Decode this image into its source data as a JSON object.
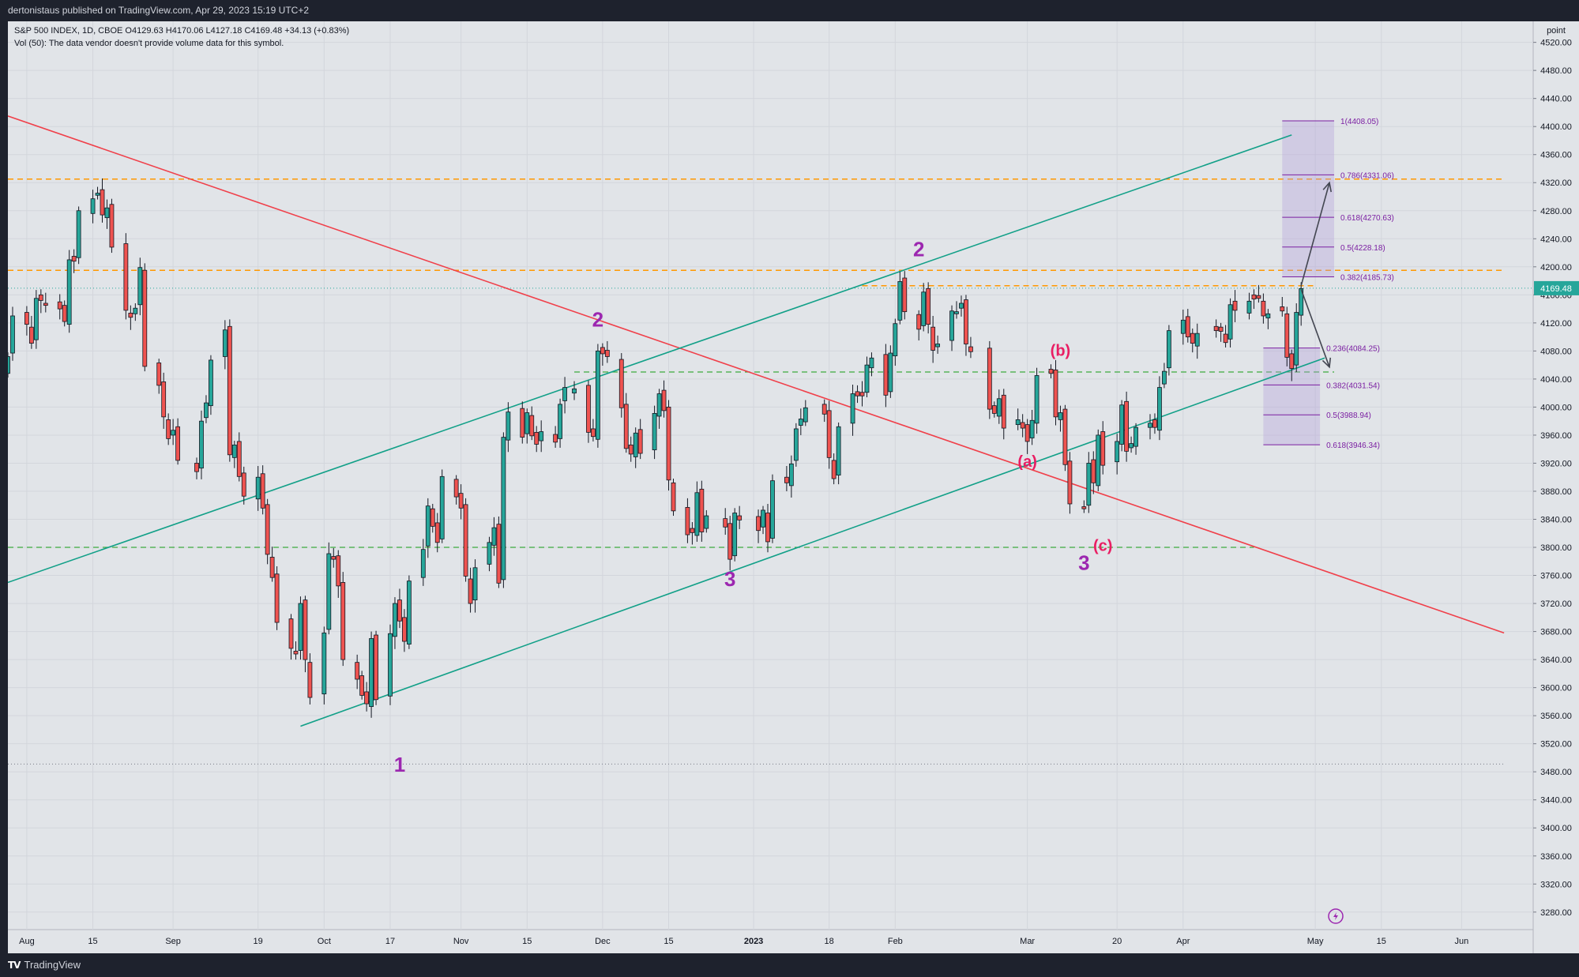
{
  "header": {
    "publisher": "dertonistaus published on TradingView.com, Apr 29, 2023 15:19 UTC+2"
  },
  "footer": {
    "brand": "TradingView",
    "logo_icon": "tradingview-logo-icon"
  },
  "colors": {
    "background": "#e1e4e8",
    "up_candle": "#26a69a",
    "down_candle": "#ef5350",
    "channel": "#12a088",
    "downtrend": "#f0404a",
    "orange_level": "#ff9800",
    "green_level": "#3daa3d",
    "wave_purple": "#9c27b0",
    "wave_pink": "#e91e63",
    "fib_zone": "#b39ddb"
  },
  "chart_data": {
    "type": "candlestick",
    "symbol_line": "S&P 500 INDEX, 1D, CBOE  O4129.63  H4170.06  L4127.18  C4169.48  +34.13 (+0.83%)",
    "volume_note": "Vol (50): The data vendor doesn't provide volume data for this symbol.",
    "axis_unit": "point",
    "last_price_label": "4169.48",
    "ylim": [
      3255,
      4550
    ],
    "y_ticks": [
      3280,
      3320,
      3360,
      3400,
      3440,
      3480,
      3520,
      3560,
      3600,
      3640,
      3680,
      3720,
      3760,
      3800,
      3840,
      3880,
      3920,
      3960,
      4000,
      4040,
      4080,
      4120,
      4160,
      4200,
      4240,
      4280,
      4320,
      4360,
      4400,
      4440,
      4480,
      4520
    ],
    "x_ticks": [
      {
        "label": "Aug",
        "date": "2022-08-01"
      },
      {
        "label": "15",
        "date": "2022-08-15"
      },
      {
        "label": "Sep",
        "date": "2022-09-01"
      },
      {
        "label": "19",
        "date": "2022-09-19"
      },
      {
        "label": "Oct",
        "date": "2022-10-03"
      },
      {
        "label": "17",
        "date": "2022-10-17"
      },
      {
        "label": "Nov",
        "date": "2022-11-01"
      },
      {
        "label": "15",
        "date": "2022-11-15"
      },
      {
        "label": "Dec",
        "date": "2022-12-01"
      },
      {
        "label": "15",
        "date": "2022-12-15"
      },
      {
        "label": "2023",
        "date": "2023-01-02"
      },
      {
        "label": "18",
        "date": "2023-01-18"
      },
      {
        "label": "Feb",
        "date": "2023-02-01"
      },
      {
        "label": "Mar",
        "date": "2023-03-01"
      },
      {
        "label": "20",
        "date": "2023-03-20"
      },
      {
        "label": "Apr",
        "date": "2023-04-03"
      },
      {
        "label": "May",
        "date": "2023-05-01"
      },
      {
        "label": "15",
        "date": "2023-05-15"
      },
      {
        "label": "Jun",
        "date": "2023-06-01"
      }
    ],
    "closes": [
      [
        "2022-07-28",
        4072
      ],
      [
        "2022-07-29",
        4130
      ],
      [
        "2022-08-01",
        4118
      ],
      [
        "2022-08-02",
        4091
      ],
      [
        "2022-08-03",
        4155
      ],
      [
        "2022-08-04",
        4152
      ],
      [
        "2022-08-05",
        4145
      ],
      [
        "2022-08-08",
        4140
      ],
      [
        "2022-08-09",
        4122
      ],
      [
        "2022-08-10",
        4210
      ],
      [
        "2022-08-11",
        4208
      ],
      [
        "2022-08-12",
        4280
      ],
      [
        "2022-08-15",
        4297
      ],
      [
        "2022-08-16",
        4305
      ],
      [
        "2022-08-17",
        4274
      ],
      [
        "2022-08-18",
        4284
      ],
      [
        "2022-08-19",
        4228
      ],
      [
        "2022-08-22",
        4138
      ],
      [
        "2022-08-23",
        4128
      ],
      [
        "2022-08-24",
        4141
      ],
      [
        "2022-08-25",
        4199
      ],
      [
        "2022-08-26",
        4058
      ],
      [
        "2022-08-29",
        4031
      ],
      [
        "2022-08-30",
        3986
      ],
      [
        "2022-08-31",
        3955
      ],
      [
        "2022-09-01",
        3967
      ],
      [
        "2022-09-02",
        3924
      ],
      [
        "2022-09-06",
        3908
      ],
      [
        "2022-09-07",
        3980
      ],
      [
        "2022-09-08",
        4006
      ],
      [
        "2022-09-09",
        4067
      ],
      [
        "2022-09-12",
        4110
      ],
      [
        "2022-09-13",
        3932
      ],
      [
        "2022-09-14",
        3946
      ],
      [
        "2022-09-15",
        3901
      ],
      [
        "2022-09-16",
        3873
      ],
      [
        "2022-09-19",
        3900
      ],
      [
        "2022-09-20",
        3856
      ],
      [
        "2022-09-21",
        3790
      ],
      [
        "2022-09-22",
        3757
      ],
      [
        "2022-09-23",
        3693
      ],
      [
        "2022-09-26",
        3656
      ],
      [
        "2022-09-27",
        3648
      ],
      [
        "2022-09-28",
        3720
      ],
      [
        "2022-09-29",
        3640
      ],
      [
        "2022-09-30",
        3586
      ],
      [
        "2022-10-03",
        3678
      ],
      [
        "2022-10-04",
        3791
      ],
      [
        "2022-10-05",
        3783
      ],
      [
        "2022-10-06",
        3745
      ],
      [
        "2022-10-07",
        3640
      ],
      [
        "2022-10-10",
        3612
      ],
      [
        "2022-10-11",
        3589
      ],
      [
        "2022-10-12",
        3577
      ],
      [
        "2022-10-13",
        3670
      ],
      [
        "2022-10-14",
        3583
      ],
      [
        "2022-10-17",
        3677
      ],
      [
        "2022-10-18",
        3720
      ],
      [
        "2022-10-19",
        3695
      ],
      [
        "2022-10-20",
        3666
      ],
      [
        "2022-10-21",
        3752
      ],
      [
        "2022-10-24",
        3797
      ],
      [
        "2022-10-25",
        3859
      ],
      [
        "2022-10-26",
        3830
      ],
      [
        "2022-10-27",
        3807
      ],
      [
        "2022-10-28",
        3901
      ],
      [
        "2022-10-31",
        3872
      ],
      [
        "2022-11-01",
        3856
      ],
      [
        "2022-11-02",
        3759
      ],
      [
        "2022-11-03",
        3720
      ],
      [
        "2022-11-04",
        3771
      ],
      [
        "2022-11-07",
        3807
      ],
      [
        "2022-11-08",
        3828
      ],
      [
        "2022-11-09",
        3749
      ],
      [
        "2022-11-10",
        3957
      ],
      [
        "2022-11-11",
        3993
      ],
      [
        "2022-11-14",
        3957
      ],
      [
        "2022-11-15",
        3992
      ],
      [
        "2022-11-16",
        3959
      ],
      [
        "2022-11-17",
        3947
      ],
      [
        "2022-11-18",
        3965
      ],
      [
        "2022-11-21",
        3950
      ],
      [
        "2022-11-22",
        4004
      ],
      [
        "2022-11-23",
        4028
      ],
      [
        "2022-11-25",
        4026
      ],
      [
        "2022-11-28",
        3964
      ],
      [
        "2022-11-29",
        3958
      ],
      [
        "2022-11-30",
        4080
      ],
      [
        "2022-12-01",
        4076
      ],
      [
        "2022-12-02",
        4072
      ],
      [
        "2022-12-05",
        3999
      ],
      [
        "2022-12-06",
        3941
      ],
      [
        "2022-12-07",
        3933
      ],
      [
        "2022-12-08",
        3963
      ],
      [
        "2022-12-09",
        3934
      ],
      [
        "2022-12-12",
        3991
      ],
      [
        "2022-12-13",
        4019
      ],
      [
        "2022-12-14",
        3995
      ],
      [
        "2022-12-15",
        3896
      ],
      [
        "2022-12-16",
        3852
      ],
      [
        "2022-12-19",
        3818
      ],
      [
        "2022-12-20",
        3821
      ],
      [
        "2022-12-21",
        3878
      ],
      [
        "2022-12-22",
        3822
      ],
      [
        "2022-12-23",
        3845
      ],
      [
        "2022-12-27",
        3829
      ],
      [
        "2022-12-28",
        3783
      ],
      [
        "2022-12-29",
        3849
      ],
      [
        "2022-12-30",
        3839
      ],
      [
        "2023-01-03",
        3824
      ],
      [
        "2023-01-04",
        3853
      ],
      [
        "2023-01-05",
        3808
      ],
      [
        "2023-01-06",
        3895
      ],
      [
        "2023-01-09",
        3892
      ],
      [
        "2023-01-10",
        3919
      ],
      [
        "2023-01-11",
        3969
      ],
      [
        "2023-01-12",
        3983
      ],
      [
        "2023-01-13",
        3999
      ],
      [
        "2023-01-17",
        3990
      ],
      [
        "2023-01-18",
        3928
      ],
      [
        "2023-01-19",
        3898
      ],
      [
        "2023-01-20",
        3972
      ],
      [
        "2023-01-23",
        4019
      ],
      [
        "2023-01-24",
        4016
      ],
      [
        "2023-01-25",
        4016
      ],
      [
        "2023-01-26",
        4060
      ],
      [
        "2023-01-27",
        4070
      ],
      [
        "2023-01-30",
        4017
      ],
      [
        "2023-01-31",
        4077
      ],
      [
        "2023-02-01",
        4119
      ],
      [
        "2023-02-02",
        4179
      ],
      [
        "2023-02-03",
        4136
      ],
      [
        "2023-02-06",
        4111
      ],
      [
        "2023-02-07",
        4164
      ],
      [
        "2023-02-08",
        4118
      ],
      [
        "2023-02-09",
        4081
      ],
      [
        "2023-02-10",
        4090
      ],
      [
        "2023-02-13",
        4137
      ],
      [
        "2023-02-14",
        4136
      ],
      [
        "2023-02-15",
        4148
      ],
      [
        "2023-02-16",
        4090
      ],
      [
        "2023-02-17",
        4079
      ],
      [
        "2023-02-21",
        3997
      ],
      [
        "2023-02-22",
        3991
      ],
      [
        "2023-02-23",
        4012
      ],
      [
        "2023-02-24",
        3970
      ],
      [
        "2023-02-27",
        3982
      ],
      [
        "2023-02-28",
        3970
      ],
      [
        "2023-03-01",
        3951
      ],
      [
        "2023-03-02",
        3981
      ],
      [
        "2023-03-03",
        4045
      ],
      [
        "2023-03-06",
        4048
      ],
      [
        "2023-03-07",
        3986
      ],
      [
        "2023-03-08",
        3992
      ],
      [
        "2023-03-09",
        3918
      ],
      [
        "2023-03-10",
        3862
      ],
      [
        "2023-03-13",
        3855
      ],
      [
        "2023-03-14",
        3920
      ],
      [
        "2023-03-15",
        3892
      ],
      [
        "2023-03-16",
        3960
      ],
      [
        "2023-03-17",
        3917
      ],
      [
        "2023-03-20",
        3951
      ],
      [
        "2023-03-21",
        4003
      ],
      [
        "2023-03-22",
        3937
      ],
      [
        "2023-03-23",
        3948
      ],
      [
        "2023-03-24",
        3971
      ],
      [
        "2023-03-27",
        3977
      ],
      [
        "2023-03-28",
        3971
      ],
      [
        "2023-03-29",
        4028
      ],
      [
        "2023-03-30",
        4051
      ],
      [
        "2023-03-31",
        4109
      ],
      [
        "2023-04-03",
        4124
      ],
      [
        "2023-04-04",
        4100
      ],
      [
        "2023-04-05",
        4091
      ],
      [
        "2023-04-06",
        4105
      ],
      [
        "2023-04-10",
        4109
      ],
      [
        "2023-04-11",
        4108
      ],
      [
        "2023-04-12",
        4092
      ],
      [
        "2023-04-13",
        4146
      ],
      [
        "2023-04-14",
        4138
      ],
      [
        "2023-04-17",
        4151
      ],
      [
        "2023-04-18",
        4154
      ],
      [
        "2023-04-19",
        4155
      ],
      [
        "2023-04-20",
        4130
      ],
      [
        "2023-04-21",
        4133
      ],
      [
        "2023-04-24",
        4137
      ],
      [
        "2023-04-25",
        4071
      ],
      [
        "2023-04-26",
        4055
      ],
      [
        "2023-04-27",
        4135
      ],
      [
        "2023-04-28",
        4169
      ]
    ],
    "horizontal_levels": [
      {
        "price": 4325,
        "style": "orange-dashed",
        "start": "2022-07-28",
        "end": "2023-06-10"
      },
      {
        "price": 4195,
        "style": "orange-dashed",
        "start": "2022-07-28",
        "end": "2023-06-10"
      },
      {
        "price": 4173,
        "style": "orange-dashed",
        "start": "2023-01-25",
        "end": "2023-05-01"
      },
      {
        "price": 4050,
        "style": "green-dashed",
        "start": "2022-11-25",
        "end": "2023-05-05"
      },
      {
        "price": 3800,
        "style": "green-dashed",
        "start": "2022-07-28",
        "end": "2023-04-18"
      },
      {
        "price": 3491,
        "style": "gray-dotted",
        "start": "2022-07-28",
        "end": "2023-06-10"
      }
    ],
    "trend_lines": [
      {
        "name": "downtrend",
        "from": [
          "2022-07-28",
          4415
        ],
        "to": [
          "2023-06-10",
          3678
        ]
      },
      {
        "name": "channel-upper",
        "from": [
          "2022-07-28",
          3750
        ],
        "to": [
          "2023-04-26",
          4388
        ]
      },
      {
        "name": "channel-lower",
        "from": [
          "2022-09-28",
          3545
        ],
        "to": [
          "2023-05-03",
          4070
        ]
      }
    ],
    "wave_labels": [
      {
        "text": "1",
        "date": "2022-10-19",
        "price": 3480,
        "color": "purple"
      },
      {
        "text": "2",
        "date": "2022-11-30",
        "price": 4115,
        "color": "purple"
      },
      {
        "text": "3",
        "date": "2022-12-28",
        "price": 3745,
        "color": "purple"
      },
      {
        "text": "2",
        "date": "2023-02-06",
        "price": 4215,
        "color": "purple"
      },
      {
        "text": "(b)",
        "date": "2023-03-08",
        "price": 4073,
        "color": "pink"
      },
      {
        "text": "(a)",
        "date": "2023-03-01",
        "price": 3915,
        "color": "pink"
      },
      {
        "text": "3",
        "date": "2023-03-13",
        "price": 3768,
        "color": "purple"
      },
      {
        "text": "(c)",
        "date": "2023-03-17",
        "price": 3795,
        "color": "pink"
      }
    ],
    "fib_upper": {
      "start": "2023-04-24",
      "end": "2023-05-05",
      "levels": [
        {
          "label": "1(4408.05)",
          "price": 4408.05
        },
        {
          "label": "0.786(4331.06)",
          "price": 4331.06
        },
        {
          "label": "0.618(4270.63)",
          "price": 4270.63
        },
        {
          "label": "0.5(4228.18)",
          "price": 4228.18
        },
        {
          "label": "0.382(4185.73)",
          "price": 4185.73
        }
      ]
    },
    "fib_lower": {
      "start": "2023-04-20",
      "end": "2023-05-02",
      "levels": [
        {
          "label": "0.236(4084.25)",
          "price": 4084.25
        },
        {
          "label": "0.382(4031.54)",
          "price": 4031.54
        },
        {
          "label": "0.5(3988.94)",
          "price": 3988.94
        },
        {
          "label": "0.618(3946.34)",
          "price": 3946.34
        }
      ]
    },
    "arrows": [
      {
        "from": [
          "2023-04-28",
          4173
        ],
        "to": [
          "2023-05-04",
          4320
        ]
      },
      {
        "from": [
          "2023-04-28",
          4168
        ],
        "to": [
          "2023-05-04",
          4057
        ]
      }
    ]
  }
}
